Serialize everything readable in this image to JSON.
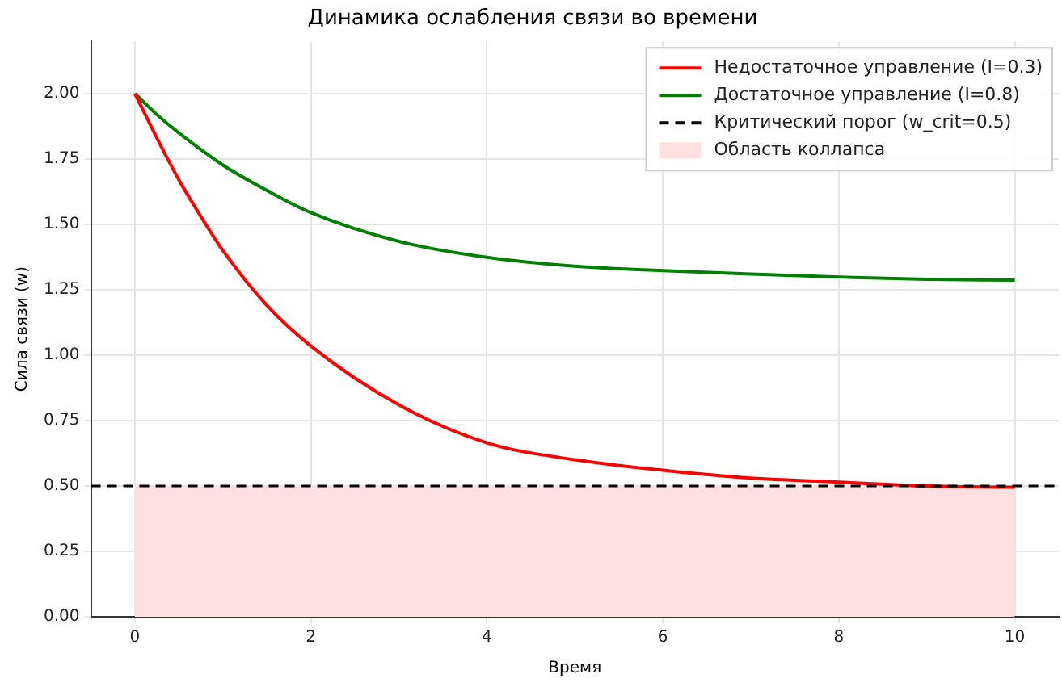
{
  "chart_data": {
    "type": "line",
    "title": "Динамика ослабления связи во времени",
    "xlabel": "Время",
    "ylabel": "Сила связи (w)",
    "series": [
      {
        "name": "Недостаточное управление (I=0.3)",
        "color": "#ff0000",
        "x": [
          0,
          0.25,
          0.5,
          0.75,
          1,
          1.5,
          2,
          3,
          4,
          5,
          6,
          7,
          8,
          9,
          10
        ],
        "values": [
          2.0,
          1.83,
          1.67,
          1.53,
          1.4,
          1.19,
          1.035,
          0.81,
          0.665,
          0.6,
          0.56,
          0.53,
          0.515,
          0.5,
          0.495
        ]
      },
      {
        "name": "Достаточное управление (I=0.8)",
        "color": "#008000",
        "x": [
          0,
          0.25,
          0.5,
          1,
          1.5,
          2,
          3,
          4,
          5,
          6,
          7,
          8,
          9,
          10
        ],
        "values": [
          2.0,
          1.92,
          1.85,
          1.727,
          1.63,
          1.545,
          1.435,
          1.374,
          1.34,
          1.323,
          1.31,
          1.299,
          1.29,
          1.287
        ]
      },
      {
        "name": "Область коллапса",
        "type": "area",
        "color": "#ffe0e0",
        "x": [
          0,
          10
        ],
        "values": [
          0.5,
          0.5
        ]
      }
    ],
    "ref_lines": [
      {
        "axis": "y",
        "value": 0.5,
        "label": "Критический порог (w_crit=0.5)",
        "color": "#000000",
        "line_style": "dashed"
      }
    ],
    "xlim": [
      -0.5,
      10.5
    ],
    "xticks": [
      0,
      2,
      4,
      6,
      8,
      10
    ],
    "ylim": [
      0,
      2.2
    ],
    "yticks": [
      {
        "value": 0,
        "label": "0.00"
      },
      {
        "value": 0.25,
        "label": "0.25"
      },
      {
        "value": 0.5,
        "label": "0.50"
      },
      {
        "value": 0.75,
        "label": "0.75"
      },
      {
        "value": 1,
        "label": "1.00"
      },
      {
        "value": 1.25,
        "label": "1.25"
      },
      {
        "value": 1.5,
        "label": "1.50"
      },
      {
        "value": 1.75,
        "label": "1.75"
      },
      {
        "value": 2,
        "label": "2.00"
      }
    ],
    "grid": true,
    "legend": "top right",
    "marker": "none",
    "line_style": "solid"
  }
}
